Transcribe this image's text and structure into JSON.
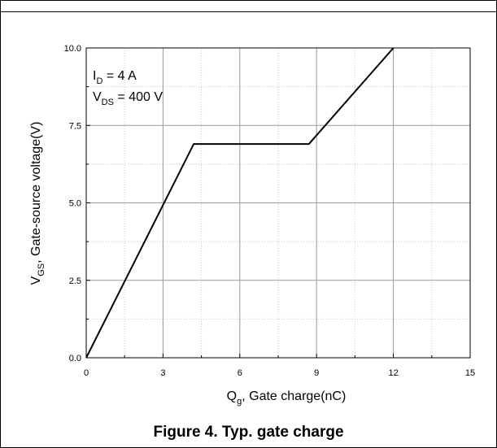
{
  "caption": "Figure 4. Typ. gate charge",
  "chart_data": {
    "type": "line",
    "xlim": [
      0,
      15
    ],
    "ylim": [
      0,
      10
    ],
    "xticks": [
      0,
      3,
      6,
      9,
      12,
      15
    ],
    "yticks": [
      0.0,
      2.5,
      5.0,
      7.5,
      10.0
    ],
    "xtick_labels": [
      "0",
      "3",
      "6",
      "9",
      "12",
      "15"
    ],
    "ytick_labels": [
      "0.0",
      "2.5",
      "5.0",
      "7.5",
      "10.0"
    ],
    "xlabel": {
      "main": "Q",
      "sub": "g",
      "rest": ", Gate charge(nC)"
    },
    "ylabel": {
      "main": "V",
      "sub": "GS",
      "rest": ", Gate-source voltage(V)"
    },
    "grid": true,
    "annotations": [
      {
        "main": "I",
        "sub": "D",
        "rest": " = 4 A"
      },
      {
        "main": "V",
        "sub": "DS",
        "rest": " = 400 V"
      }
    ],
    "series": [
      {
        "x": [
          0,
          4.2,
          8.7,
          12.0
        ],
        "y": [
          0,
          6.9,
          6.9,
          10.0
        ]
      }
    ],
    "colors": {
      "line": "#000000",
      "grid_major": "#9a9a9a",
      "grid_minor": "#c8c8c8"
    }
  }
}
